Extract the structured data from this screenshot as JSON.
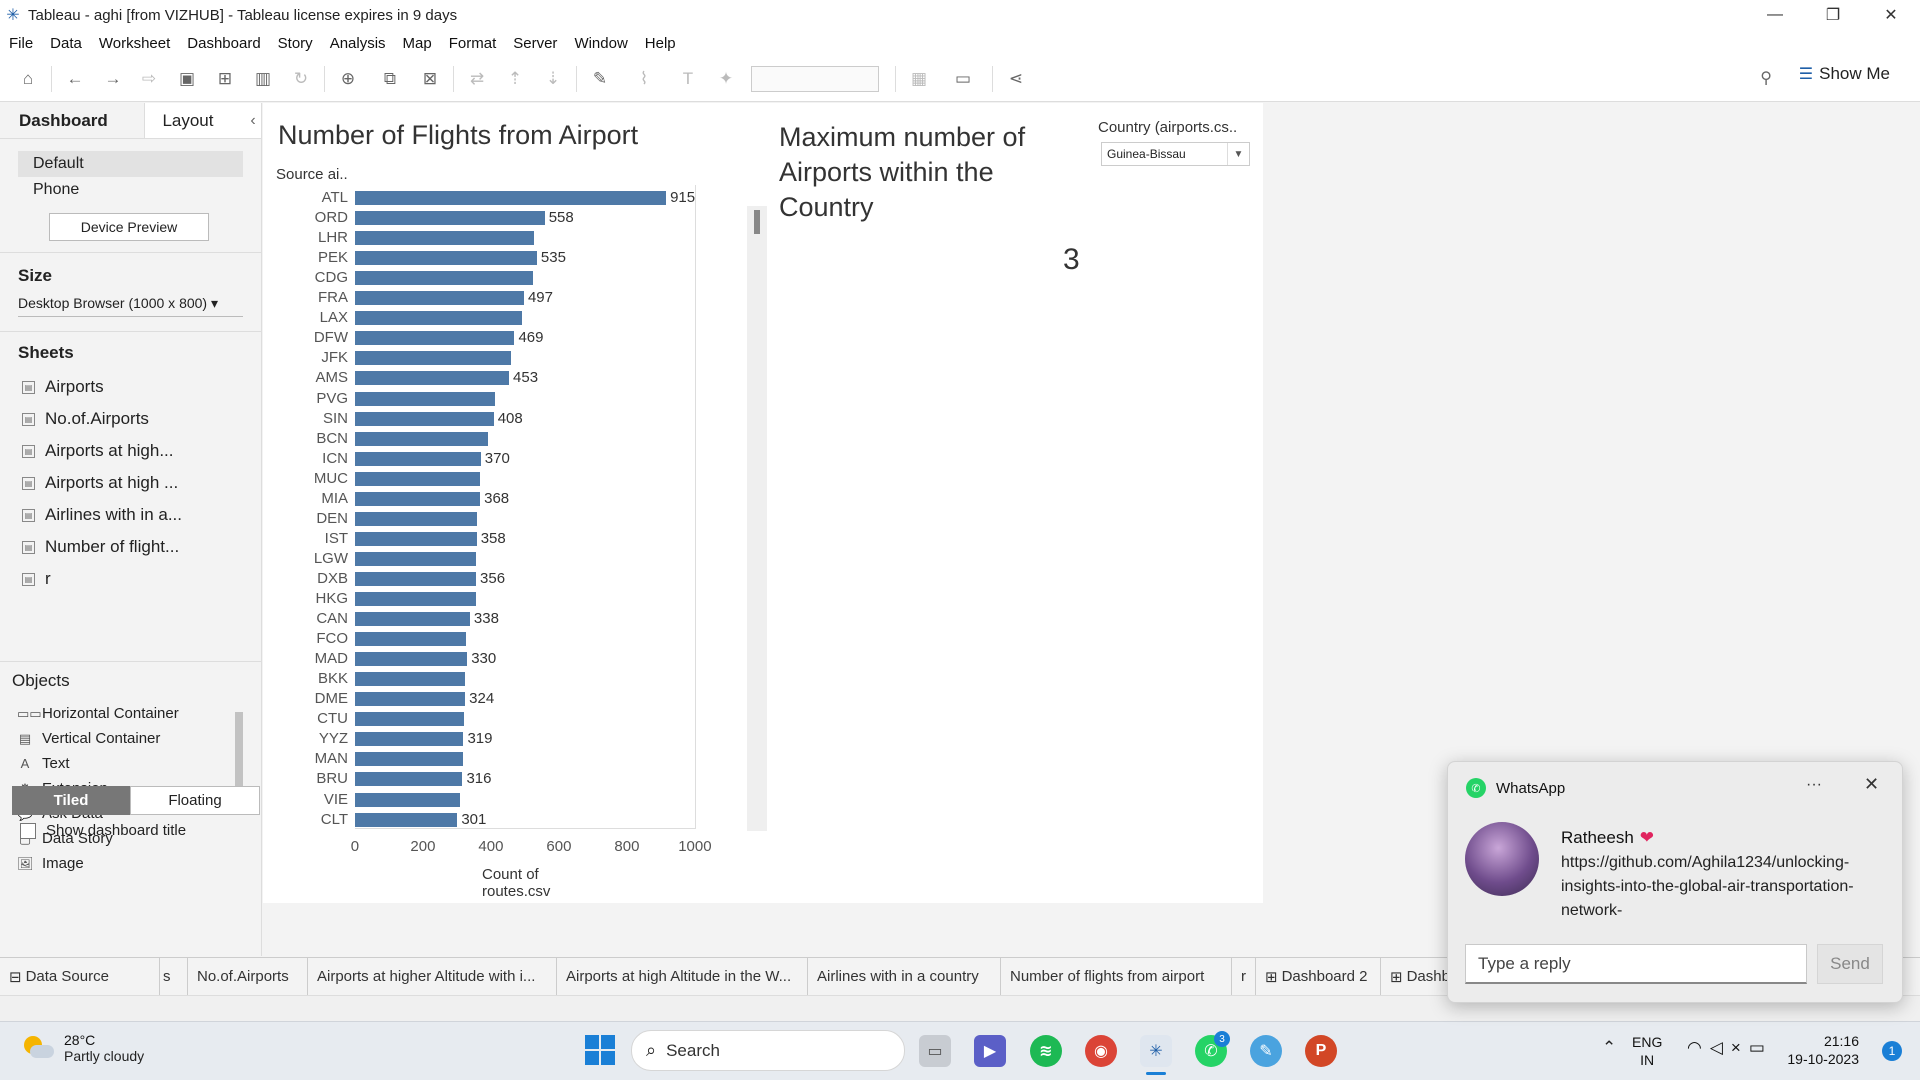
{
  "window": {
    "title": "Tableau - aghi [from VIZHUB] - Tableau license expires in 9 days",
    "controls": [
      "—",
      "❐",
      "✕"
    ]
  },
  "menu": [
    "File",
    "Data",
    "Worksheet",
    "Dashboard",
    "Story",
    "Analysis",
    "Map",
    "Format",
    "Server",
    "Window",
    "Help"
  ],
  "toolbar": {
    "show_me": "Show Me"
  },
  "left_pane": {
    "tab_dashboard": "Dashboard",
    "tab_layout": "Layout",
    "devices": [
      "Default",
      "Phone"
    ],
    "device_preview": "Device Preview",
    "size_title": "Size",
    "size_value": "Desktop Browser (1000 x 800)",
    "sheets_title": "Sheets",
    "sheets": [
      "Airports",
      "No.of.Airports",
      "Airports at high...",
      "Airports at high ...",
      "Airlines with in a...",
      "Number of flight...",
      "r"
    ],
    "objects_title": "Objects",
    "objects": [
      {
        "label": "Horizontal Container",
        "icon": "▭▭"
      },
      {
        "label": "Vertical Container",
        "icon": "▤"
      },
      {
        "label": "Text",
        "icon": "A"
      },
      {
        "label": "Extension",
        "icon": "⚙"
      },
      {
        "label": "Ask Data",
        "icon": "💬"
      },
      {
        "label": "Data Story",
        "icon": "▢"
      },
      {
        "label": "Image",
        "icon": "🖼"
      }
    ],
    "tiled": "Tiled",
    "floating": "Floating",
    "show_title": "Show dashboard title"
  },
  "dashboard": {
    "chart_title": "Number of Flights from Airport",
    "axis_head": "Source ai..",
    "kpi_title": "Maximum number of Airports within the Country",
    "kpi_value": "3",
    "filter_title": "Country (airports.cs..",
    "filter_value": "Guinea-Bissau"
  },
  "chart_data": {
    "type": "bar",
    "orientation": "horizontal",
    "title": "Number of Flights from Airport",
    "ylabel": "Source ai..",
    "xlabel": "Count of routes.csv",
    "xlim": [
      0,
      1000
    ],
    "xticks": [
      0,
      200,
      400,
      600,
      800,
      1000
    ],
    "color": "#4e79a7",
    "categories": [
      "ATL",
      "ORD",
      "LHR",
      "PEK",
      "CDG",
      "FRA",
      "LAX",
      "DFW",
      "JFK",
      "AMS",
      "PVG",
      "SIN",
      "BCN",
      "ICN",
      "MUC",
      "MIA",
      "DEN",
      "IST",
      "LGW",
      "DXB",
      "HKG",
      "CAN",
      "FCO",
      "MAD",
      "BKK",
      "DME",
      "CTU",
      "YYZ",
      "MAN",
      "BRU",
      "VIE",
      "CLT"
    ],
    "values": [
      915,
      558,
      527,
      535,
      524,
      497,
      492,
      469,
      460,
      453,
      411,
      408,
      391,
      370,
      368,
      368,
      360,
      358,
      357,
      356,
      355,
      338,
      327,
      330,
      324,
      324,
      320,
      319,
      319,
      316,
      308,
      301
    ],
    "labeled": [
      true,
      true,
      false,
      true,
      false,
      true,
      false,
      true,
      false,
      true,
      false,
      true,
      false,
      true,
      false,
      true,
      false,
      true,
      false,
      true,
      false,
      true,
      false,
      true,
      false,
      true,
      false,
      true,
      false,
      true,
      false,
      true
    ]
  },
  "bottom_tabs": [
    "Data Source",
    "s",
    "No.of.Airports",
    "Airports at higher Altitude with i...",
    "Airports at high Altitude in the W...",
    "Airlines with in a country",
    "Number of flights from airport",
    "r",
    "Dashboard 2",
    "Dashbo"
  ],
  "taskbar": {
    "temp": "28°C",
    "condition": "Partly cloudy",
    "search": "Search",
    "lang": "ENG",
    "region": "IN",
    "time": "21:16",
    "date": "19-10-2023",
    "notif_count": "1",
    "whatsapp_badge": "3"
  },
  "toast": {
    "app": "WhatsApp",
    "sender": "Ratheesh",
    "heart": "❤",
    "message": "https://github.com/Aghila1234/unlocking-insights-into-the-global-air-transportation-network-",
    "reply_placeholder": "Type a reply",
    "send": "Send"
  }
}
